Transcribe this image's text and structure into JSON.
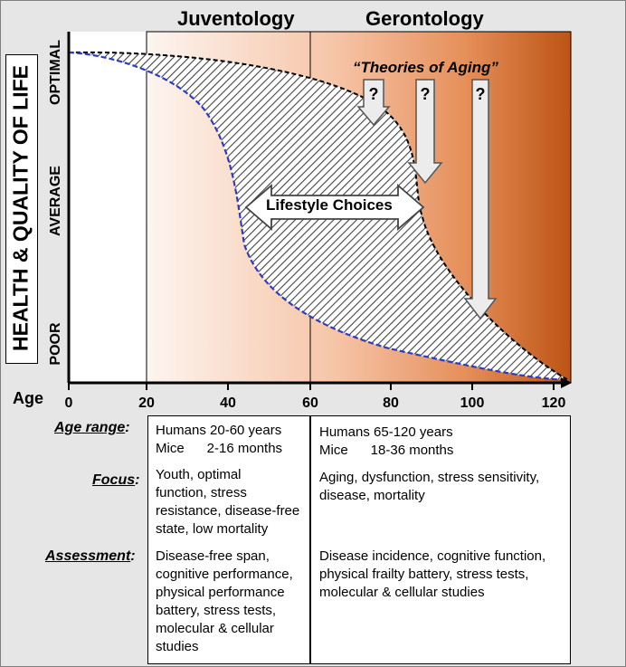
{
  "headers": {
    "left": "Juventology",
    "right": "Gerontology"
  },
  "y_axis": {
    "title": "HEALTH & QUALITY OF LIFE",
    "optimal": "OPTIMAL",
    "average": "AVERAGE",
    "poor": "POOR"
  },
  "x_axis": {
    "label": "Age",
    "ticks": [
      "0",
      "20",
      "40",
      "60",
      "80",
      "100",
      "120"
    ]
  },
  "annotations": {
    "theories": "“Theories of Aging”",
    "question": "?",
    "lifestyle": "Lifestyle Choices"
  },
  "table": {
    "age_range": {
      "label": "Age range",
      "suffix": ":",
      "juv": [
        "Humans 20-60 years",
        "Mice      2-16 months"
      ],
      "ger": [
        "Humans 65-120 years",
        "Mice      18-36 months"
      ]
    },
    "focus": {
      "label": "Focus",
      "suffix": ":",
      "juv": [
        "Youth, optimal",
        "function, stress",
        "resistance, disease-free",
        "state, low mortality"
      ],
      "ger": [
        "Aging, dysfunction, stress sensitivity,",
        "disease, mortality"
      ]
    },
    "assessment": {
      "label": "Assessment",
      "suffix": ":",
      "juv": [
        "Disease-free span,",
        "cognitive performance,",
        "physical performance",
        "battery, stress tests,",
        "molecular & cellular",
        "studies"
      ],
      "ger": [
        "Disease incidence, cognitive function,",
        "physical frailty battery, stress tests,",
        "molecular & cellular studies"
      ]
    }
  },
  "colors": {
    "gradient_start": "#fdf2ec",
    "gradient_mid": "#f4b896",
    "gradient_end": "#c0591a",
    "curve_lower": "#2a3cc8"
  }
}
